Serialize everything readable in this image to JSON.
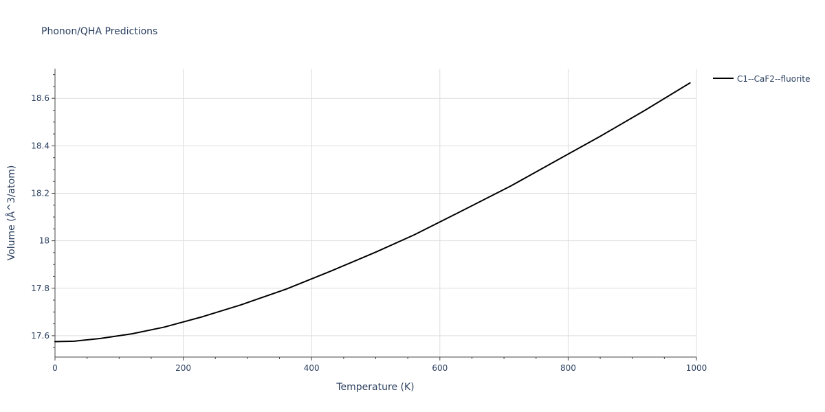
{
  "chart_data": {
    "type": "line",
    "title": "Phonon/QHA Predictions",
    "xlabel": "Temperature (K)",
    "ylabel": "Volume (Å^3/atom)",
    "xlim": [
      0,
      1000
    ],
    "ylim": [
      17.51,
      18.725
    ],
    "x_major_ticks": [
      0,
      200,
      400,
      600,
      800,
      1000
    ],
    "x_tick_labels": [
      "0",
      "200",
      "400",
      "600",
      "800",
      "1000"
    ],
    "x_minor_step": 50,
    "y_major_ticks": [
      17.6,
      17.8,
      18.0,
      18.2,
      18.4,
      18.6
    ],
    "y_tick_labels": [
      "17.6",
      "17.8",
      "18",
      "18.2",
      "18.4",
      "18.6"
    ],
    "y_minor_step": 0.05,
    "grid": true,
    "legend_position": "top-right",
    "colors": {
      "series": "#000000",
      "grid": "#dddddd",
      "axis": "#444444",
      "text": "#2a3f5f"
    },
    "series": [
      {
        "name": "C1--CaF2--fluorite",
        "x": [
          0,
          30,
          70,
          120,
          170,
          230,
          290,
          360,
          430,
          500,
          560,
          630,
          710,
          780,
          850,
          920,
          990
        ],
        "y": [
          17.575,
          17.577,
          17.588,
          17.608,
          17.636,
          17.68,
          17.73,
          17.796,
          17.872,
          17.952,
          18.025,
          18.12,
          18.23,
          18.335,
          18.44,
          18.55,
          18.665
        ]
      }
    ]
  }
}
